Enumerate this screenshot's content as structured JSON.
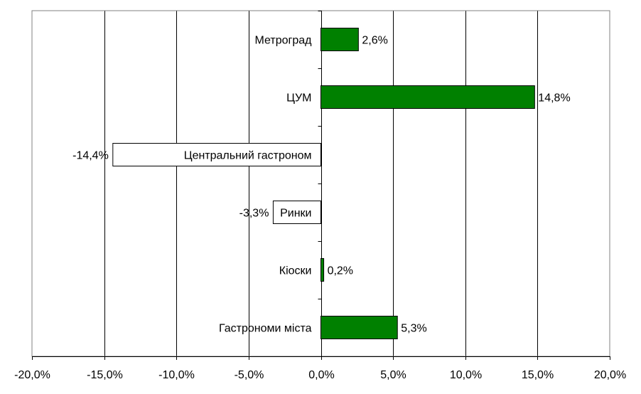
{
  "chart_data": {
    "type": "bar",
    "orientation": "horizontal",
    "title": "",
    "xlabel": "",
    "ylabel": "",
    "categories": [
      "Метроград",
      "ЦУМ",
      "Центральний гастроном",
      "Ринки",
      "Кіоски",
      "Гастрономи міста"
    ],
    "values": [
      2.6,
      14.8,
      -14.4,
      -3.3,
      0.2,
      5.3
    ],
    "value_labels": [
      "2,6%",
      "14,8%",
      "-14,4%",
      "-3,3%",
      "0,2%",
      "5,3%"
    ],
    "xlim": [
      -20,
      20
    ],
    "x_ticks": [
      -20,
      -15,
      -10,
      -5,
      0,
      5,
      10,
      15,
      20
    ],
    "x_tick_labels": [
      "-20,0%",
      "-15,0%",
      "-10,0%",
      "-5,0%",
      "0,0%",
      "5,0%",
      "10,0%",
      "15,0%",
      "20,0%"
    ],
    "grid": "vertical",
    "legend": "none",
    "colors": {
      "positive_fill": "#008000",
      "negative_fill": "#ffffff",
      "bar_stroke": "#000000",
      "grid": "#000000",
      "frame": "#808080"
    }
  }
}
